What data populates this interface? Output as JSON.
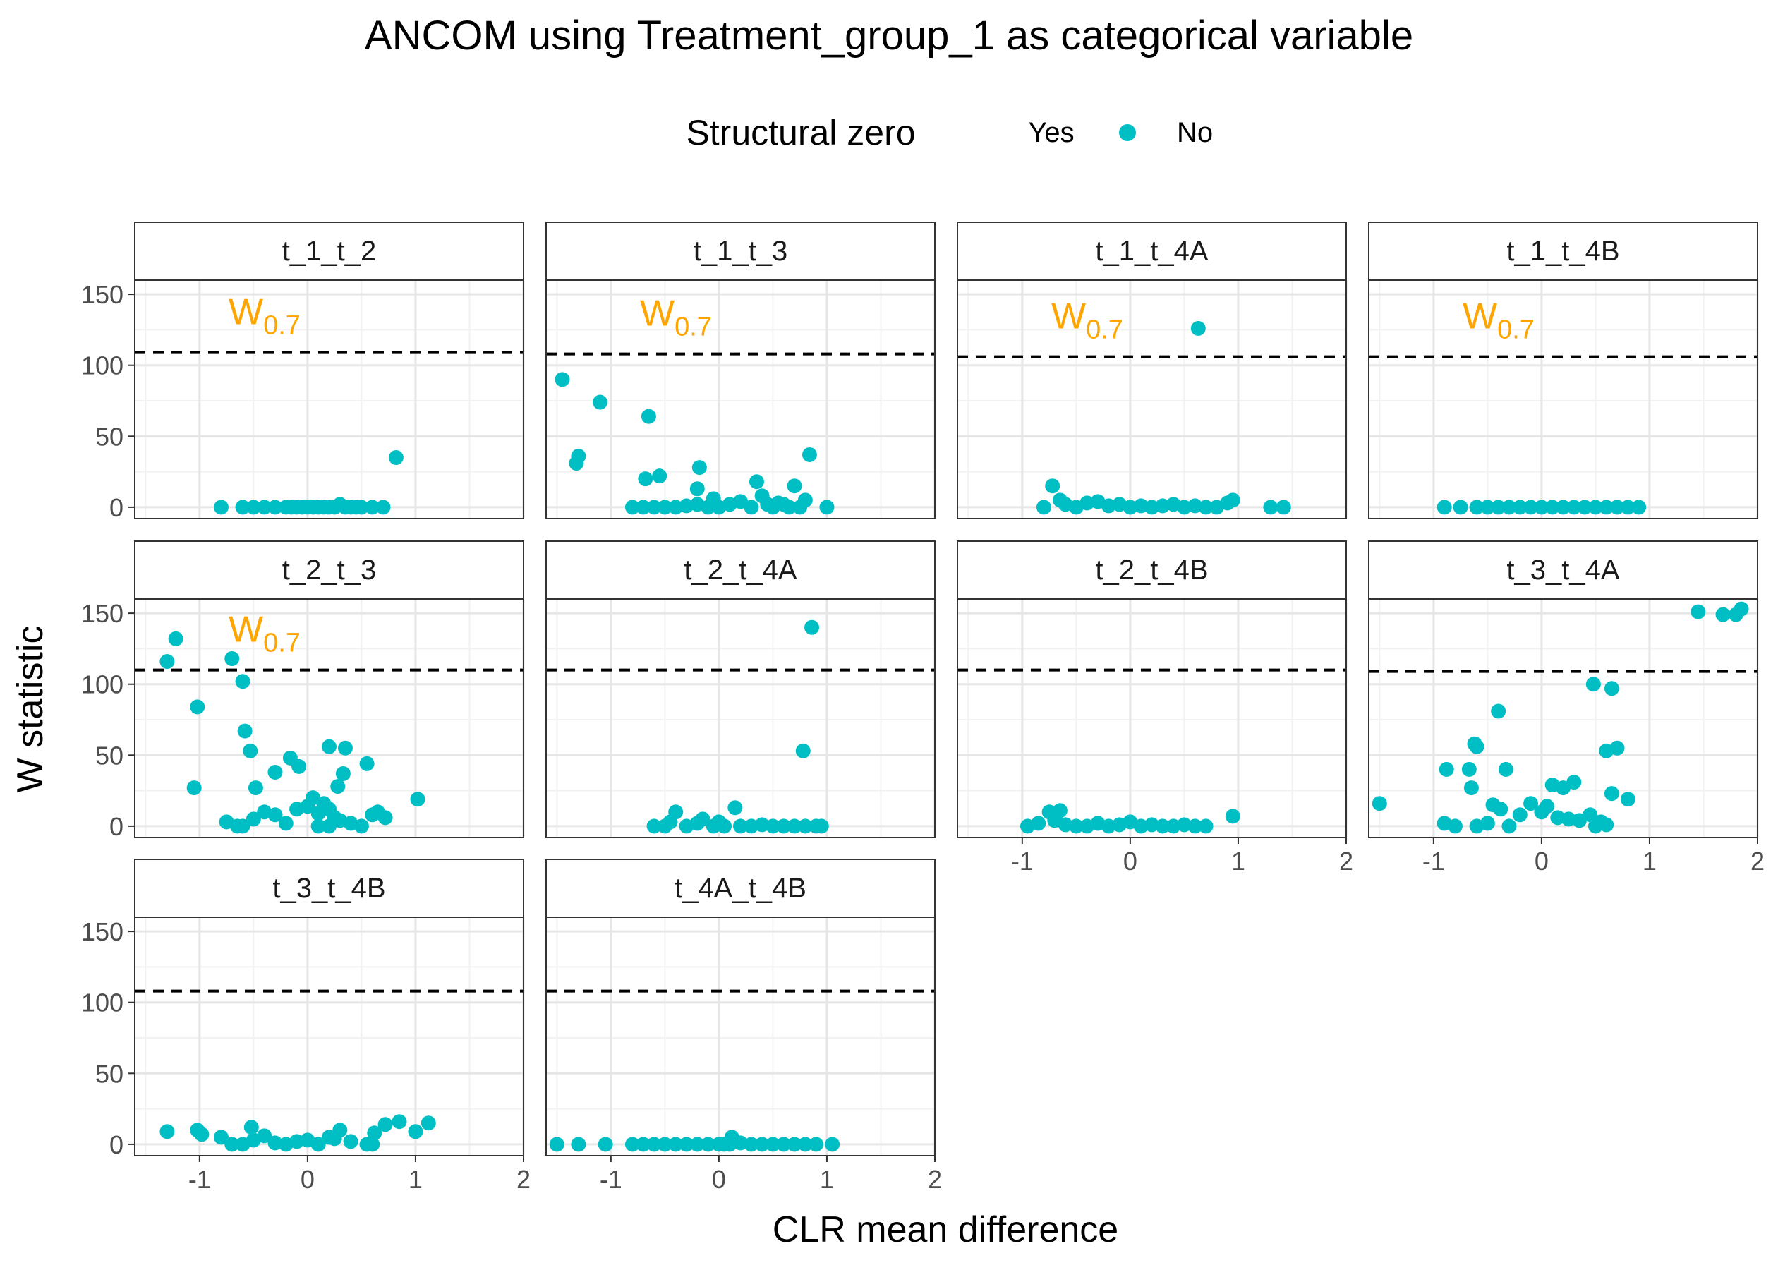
{
  "chart_data": {
    "type": "scatter",
    "title": "ANCOM using Treatment_group_1 as categorical variable",
    "xlabel": "CLR mean difference",
    "ylabel": "W statistic",
    "xlim": [
      -1.6,
      2.0
    ],
    "ylim": [
      -8,
      160
    ],
    "x_ticks": [
      -1,
      0,
      1,
      2
    ],
    "y_ticks": [
      0,
      50,
      100,
      150
    ],
    "legend": {
      "title": "Structural zero",
      "placement": "top",
      "entries": [
        {
          "label": "Yes",
          "color": ""
        },
        {
          "label": "No",
          "color": "#00BFC4"
        }
      ]
    },
    "threshold_label": {
      "main": "W",
      "sub": "0.7",
      "color": "#FFA500"
    },
    "point_color": "#00BFC4",
    "panels": [
      {
        "name": "t_1_t_2",
        "cutoff": 109,
        "show_label": true,
        "points": [
          [
            -0.8,
            0
          ],
          [
            -0.6,
            0
          ],
          [
            -0.5,
            0
          ],
          [
            -0.4,
            0
          ],
          [
            -0.3,
            0
          ],
          [
            -0.2,
            0
          ],
          [
            -0.15,
            0
          ],
          [
            -0.1,
            0
          ],
          [
            -0.05,
            0
          ],
          [
            0,
            0
          ],
          [
            0.05,
            0
          ],
          [
            0.1,
            0
          ],
          [
            0.15,
            0
          ],
          [
            0.2,
            0
          ],
          [
            0.25,
            0
          ],
          [
            0.3,
            2
          ],
          [
            0.35,
            0
          ],
          [
            0.4,
            0
          ],
          [
            0.45,
            0
          ],
          [
            0.5,
            0
          ],
          [
            0.6,
            0
          ],
          [
            0.7,
            0
          ],
          [
            0.82,
            35
          ]
        ]
      },
      {
        "name": "t_1_t_3",
        "cutoff": 108,
        "show_label": true,
        "points": [
          [
            -1.45,
            90
          ],
          [
            -1.1,
            74
          ],
          [
            -0.65,
            64
          ],
          [
            -1.3,
            36
          ],
          [
            -1.32,
            31
          ],
          [
            -0.55,
            22
          ],
          [
            -0.68,
            20
          ],
          [
            -0.18,
            28
          ],
          [
            -0.2,
            13
          ],
          [
            0.35,
            18
          ],
          [
            0.7,
            15
          ],
          [
            0.84,
            37
          ],
          [
            0.8,
            5
          ],
          [
            -0.8,
            0
          ],
          [
            -0.7,
            0
          ],
          [
            -0.6,
            0
          ],
          [
            -0.5,
            0
          ],
          [
            -0.4,
            0
          ],
          [
            -0.3,
            1
          ],
          [
            -0.2,
            2
          ],
          [
            -0.1,
            0
          ],
          [
            -0.05,
            6
          ],
          [
            0,
            0
          ],
          [
            0.1,
            2
          ],
          [
            0.2,
            4
          ],
          [
            0.3,
            0
          ],
          [
            0.4,
            8
          ],
          [
            0.45,
            2
          ],
          [
            0.5,
            0
          ],
          [
            0.55,
            3
          ],
          [
            0.6,
            2
          ],
          [
            0.65,
            0
          ],
          [
            0.75,
            0
          ],
          [
            1.0,
            0
          ]
        ]
      },
      {
        "name": "t_1_t_4A",
        "cutoff": 106,
        "show_label": true,
        "points": [
          [
            0.63,
            126
          ],
          [
            -0.72,
            15
          ],
          [
            -0.65,
            5
          ],
          [
            -0.8,
            0
          ],
          [
            -0.6,
            2
          ],
          [
            -0.5,
            0
          ],
          [
            -0.4,
            3
          ],
          [
            -0.3,
            4
          ],
          [
            -0.2,
            1
          ],
          [
            -0.1,
            2
          ],
          [
            0,
            0
          ],
          [
            0.1,
            1
          ],
          [
            0.2,
            0
          ],
          [
            0.3,
            1
          ],
          [
            0.4,
            2
          ],
          [
            0.5,
            0
          ],
          [
            0.6,
            1
          ],
          [
            0.7,
            0
          ],
          [
            0.8,
            0
          ],
          [
            0.9,
            3
          ],
          [
            0.95,
            5
          ],
          [
            1.3,
            0
          ],
          [
            1.42,
            0
          ]
        ]
      },
      {
        "name": "t_1_t_4B",
        "cutoff": 106,
        "show_label": true,
        "points": [
          [
            -0.9,
            0
          ],
          [
            -0.75,
            0
          ],
          [
            -0.6,
            0
          ],
          [
            -0.5,
            0
          ],
          [
            -0.4,
            0
          ],
          [
            -0.3,
            0
          ],
          [
            -0.2,
            0
          ],
          [
            -0.1,
            0
          ],
          [
            0,
            0
          ],
          [
            0.1,
            0
          ],
          [
            0.2,
            0
          ],
          [
            0.3,
            0
          ],
          [
            0.4,
            0
          ],
          [
            0.5,
            0
          ],
          [
            0.6,
            0
          ],
          [
            0.7,
            0
          ],
          [
            0.8,
            0
          ],
          [
            0.9,
            0
          ]
        ]
      },
      {
        "name": "t_2_t_3",
        "cutoff": 110,
        "show_label": true,
        "points": [
          [
            -1.22,
            132
          ],
          [
            -1.3,
            116
          ],
          [
            -0.7,
            118
          ],
          [
            -0.6,
            102
          ],
          [
            -1.02,
            84
          ],
          [
            -0.58,
            67
          ],
          [
            -0.53,
            53
          ],
          [
            -1.05,
            27
          ],
          [
            -0.48,
            27
          ],
          [
            -0.3,
            38
          ],
          [
            -0.16,
            48
          ],
          [
            -0.08,
            42
          ],
          [
            0.2,
            56
          ],
          [
            0.35,
            55
          ],
          [
            0.55,
            44
          ],
          [
            0.28,
            28
          ],
          [
            0.33,
            37
          ],
          [
            1.02,
            19
          ],
          [
            0.72,
            6
          ],
          [
            -0.75,
            3
          ],
          [
            -0.6,
            0
          ],
          [
            -0.5,
            5
          ],
          [
            -0.4,
            10
          ],
          [
            -0.3,
            8
          ],
          [
            -0.2,
            2
          ],
          [
            -0.1,
            12
          ],
          [
            0,
            14
          ],
          [
            0.05,
            20
          ],
          [
            0.1,
            9
          ],
          [
            0.15,
            16
          ],
          [
            0.2,
            12
          ],
          [
            0.25,
            6
          ],
          [
            0.3,
            4
          ],
          [
            0.4,
            2
          ],
          [
            0.5,
            0
          ],
          [
            0.6,
            8
          ],
          [
            0.65,
            10
          ],
          [
            -0.65,
            0
          ],
          [
            0.1,
            0
          ],
          [
            0.2,
            0
          ]
        ]
      },
      {
        "name": "t_2_t_4A",
        "cutoff": 110,
        "show_label": false,
        "points": [
          [
            0.86,
            140
          ],
          [
            0.78,
            53
          ],
          [
            -0.4,
            10
          ],
          [
            -0.6,
            0
          ],
          [
            -0.5,
            0
          ],
          [
            -0.45,
            3
          ],
          [
            -0.3,
            0
          ],
          [
            -0.2,
            2
          ],
          [
            -0.15,
            5
          ],
          [
            -0.05,
            0
          ],
          [
            0,
            3
          ],
          [
            0.05,
            0
          ],
          [
            0.15,
            13
          ],
          [
            0.2,
            0
          ],
          [
            0.3,
            0
          ],
          [
            0.4,
            1
          ],
          [
            0.5,
            0
          ],
          [
            0.6,
            0
          ],
          [
            0.7,
            0
          ],
          [
            0.8,
            0
          ],
          [
            0.9,
            0
          ],
          [
            0.95,
            0
          ]
        ]
      },
      {
        "name": "t_2_t_4B",
        "cutoff": 110,
        "show_label": false,
        "points": [
          [
            -0.95,
            0
          ],
          [
            -0.85,
            2
          ],
          [
            -0.75,
            10
          ],
          [
            -0.65,
            11
          ],
          [
            -0.7,
            4
          ],
          [
            -0.6,
            1
          ],
          [
            -0.5,
            0
          ],
          [
            -0.4,
            0
          ],
          [
            -0.3,
            2
          ],
          [
            -0.2,
            0
          ],
          [
            -0.1,
            1
          ],
          [
            0,
            3
          ],
          [
            0.1,
            0
          ],
          [
            0.2,
            1
          ],
          [
            0.3,
            0
          ],
          [
            0.4,
            0
          ],
          [
            0.5,
            1
          ],
          [
            0.6,
            0
          ],
          [
            0.7,
            0
          ],
          [
            0.95,
            7
          ]
        ]
      },
      {
        "name": "t_3_t_4A",
        "cutoff": 109,
        "show_label": false,
        "points": [
          [
            1.45,
            151
          ],
          [
            1.68,
            149
          ],
          [
            1.8,
            149
          ],
          [
            1.85,
            153
          ],
          [
            0.48,
            100
          ],
          [
            0.65,
            97
          ],
          [
            -0.4,
            81
          ],
          [
            -0.6,
            56
          ],
          [
            -0.62,
            58
          ],
          [
            0.6,
            53
          ],
          [
            0.7,
            55
          ],
          [
            -0.88,
            40
          ],
          [
            -0.67,
            40
          ],
          [
            -0.33,
            40
          ],
          [
            -0.65,
            27
          ],
          [
            0.3,
            31
          ],
          [
            0.1,
            29
          ],
          [
            0.2,
            27
          ],
          [
            0.65,
            23
          ],
          [
            0.8,
            19
          ],
          [
            -1.5,
            16
          ],
          [
            -0.45,
            15
          ],
          [
            -0.38,
            12
          ],
          [
            -0.2,
            8
          ],
          [
            -0.1,
            16
          ],
          [
            0,
            10
          ],
          [
            0.05,
            14
          ],
          [
            0.15,
            6
          ],
          [
            0.25,
            5
          ],
          [
            0.35,
            4
          ],
          [
            0.45,
            8
          ],
          [
            0.55,
            3
          ],
          [
            -0.9,
            2
          ],
          [
            -0.8,
            0
          ],
          [
            -0.6,
            0
          ],
          [
            -0.5,
            2
          ],
          [
            -0.3,
            0
          ],
          [
            0.5,
            0
          ],
          [
            0.6,
            1
          ]
        ]
      },
      {
        "name": "t_3_t_4B",
        "cutoff": 108,
        "show_label": false,
        "points": [
          [
            -1.3,
            9
          ],
          [
            -1.02,
            10
          ],
          [
            -0.98,
            7
          ],
          [
            -0.8,
            5
          ],
          [
            -0.52,
            12
          ],
          [
            -0.4,
            6
          ],
          [
            -0.6,
            0
          ],
          [
            -0.7,
            0
          ],
          [
            -0.5,
            3
          ],
          [
            -0.3,
            1
          ],
          [
            -0.2,
            0
          ],
          [
            -0.1,
            2
          ],
          [
            0,
            3
          ],
          [
            0.1,
            0
          ],
          [
            0.2,
            5
          ],
          [
            0.25,
            4
          ],
          [
            0.3,
            10
          ],
          [
            0.4,
            2
          ],
          [
            0.55,
            0
          ],
          [
            0.62,
            8
          ],
          [
            0.72,
            14
          ],
          [
            0.85,
            16
          ],
          [
            1.0,
            9
          ],
          [
            1.12,
            15
          ],
          [
            0.6,
            0
          ]
        ]
      },
      {
        "name": "t_4A_t_4B",
        "cutoff": 108,
        "show_label": false,
        "points": [
          [
            -1.5,
            0
          ],
          [
            -1.3,
            0
          ],
          [
            -1.05,
            0
          ],
          [
            -0.8,
            0
          ],
          [
            -0.7,
            0
          ],
          [
            -0.6,
            0
          ],
          [
            -0.5,
            0
          ],
          [
            -0.4,
            0
          ],
          [
            -0.3,
            0
          ],
          [
            -0.2,
            0
          ],
          [
            -0.1,
            0
          ],
          [
            0,
            0
          ],
          [
            0.05,
            0
          ],
          [
            0.1,
            0
          ],
          [
            0.12,
            5
          ],
          [
            0.2,
            1
          ],
          [
            0.3,
            0
          ],
          [
            0.4,
            0
          ],
          [
            0.5,
            0
          ],
          [
            0.6,
            0
          ],
          [
            0.7,
            0
          ],
          [
            0.8,
            0
          ],
          [
            0.9,
            0
          ],
          [
            1.05,
            0
          ]
        ]
      }
    ]
  }
}
